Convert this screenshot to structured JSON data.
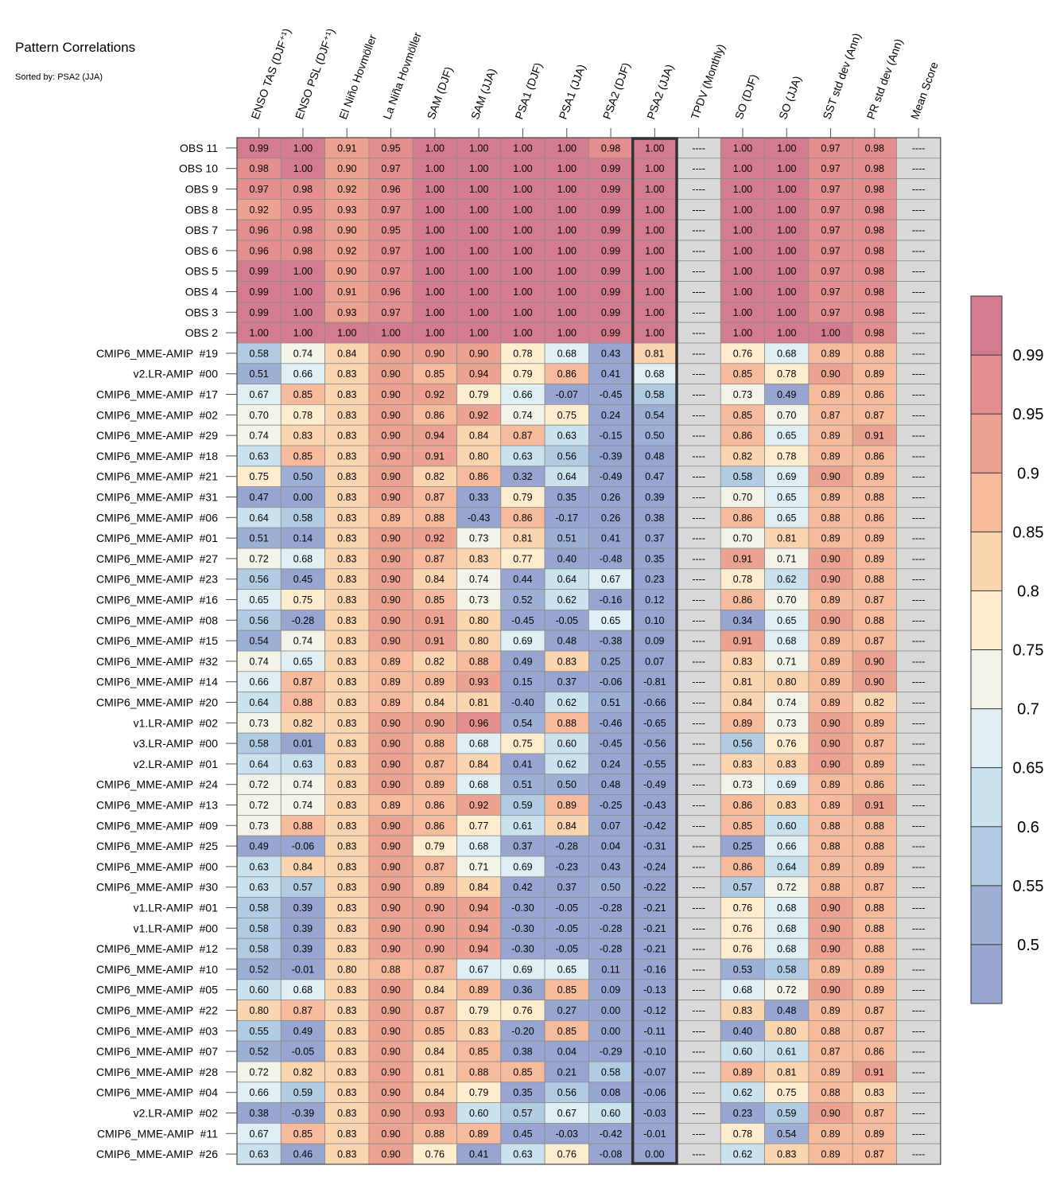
{
  "title": "Pattern Correlations",
  "subtitle": "Sorted by: PSA2 (JJA)",
  "chart_data": {
    "type": "heatmap",
    "columns": [
      "ENSO TAS (DJF⁺¹)",
      "ENSO PSL (DJF⁺¹)",
      "El Niño Hovmöller",
      "La Niña Hovmöller",
      "SAM (DJF)",
      "SAM (JJA)",
      "PSA1 (DJF)",
      "PSA1 (JJA)",
      "PSA2 (DJF)",
      "PSA2 (JJA)",
      "TPDV (Monthly)",
      "SO (DJF)",
      "SO (JJA)",
      "SST std dev (Ann)",
      "PR std dev (Ann)",
      "Mean Score"
    ],
    "highlight_column": "PSA2 (JJA)",
    "missing_label": "----",
    "rows": [
      {
        "name": "OBS 11",
        "values": [
          0.99,
          1.0,
          0.91,
          0.95,
          1.0,
          1.0,
          1.0,
          1.0,
          0.98,
          1.0,
          null,
          1.0,
          1.0,
          0.97,
          0.98,
          null
        ]
      },
      {
        "name": "OBS 10",
        "values": [
          0.98,
          1.0,
          0.9,
          0.97,
          1.0,
          1.0,
          1.0,
          1.0,
          0.99,
          1.0,
          null,
          1.0,
          1.0,
          0.97,
          0.98,
          null
        ]
      },
      {
        "name": "OBS 9",
        "values": [
          0.97,
          0.98,
          0.92,
          0.96,
          1.0,
          1.0,
          1.0,
          1.0,
          0.99,
          1.0,
          null,
          1.0,
          1.0,
          0.97,
          0.98,
          null
        ]
      },
      {
        "name": "OBS 8",
        "values": [
          0.92,
          0.95,
          0.93,
          0.97,
          1.0,
          1.0,
          1.0,
          1.0,
          0.99,
          1.0,
          null,
          1.0,
          1.0,
          0.97,
          0.98,
          null
        ]
      },
      {
        "name": "OBS 7",
        "values": [
          0.96,
          0.98,
          0.9,
          0.95,
          1.0,
          1.0,
          1.0,
          1.0,
          0.99,
          1.0,
          null,
          1.0,
          1.0,
          0.97,
          0.98,
          null
        ]
      },
      {
        "name": "OBS 6",
        "values": [
          0.96,
          0.98,
          0.92,
          0.97,
          1.0,
          1.0,
          1.0,
          1.0,
          0.99,
          1.0,
          null,
          1.0,
          1.0,
          0.97,
          0.98,
          null
        ]
      },
      {
        "name": "OBS 5",
        "values": [
          0.99,
          1.0,
          0.9,
          0.97,
          1.0,
          1.0,
          1.0,
          1.0,
          0.99,
          1.0,
          null,
          1.0,
          1.0,
          0.97,
          0.98,
          null
        ]
      },
      {
        "name": "OBS 4",
        "values": [
          0.99,
          1.0,
          0.91,
          0.96,
          1.0,
          1.0,
          1.0,
          1.0,
          0.99,
          1.0,
          null,
          1.0,
          1.0,
          0.97,
          0.98,
          null
        ]
      },
      {
        "name": "OBS 3",
        "values": [
          0.99,
          1.0,
          0.93,
          0.97,
          1.0,
          1.0,
          1.0,
          1.0,
          0.99,
          1.0,
          null,
          1.0,
          1.0,
          0.97,
          0.98,
          null
        ]
      },
      {
        "name": "OBS 2",
        "values": [
          1.0,
          1.0,
          1.0,
          1.0,
          1.0,
          1.0,
          1.0,
          1.0,
          0.99,
          1.0,
          null,
          1.0,
          1.0,
          1.0,
          0.98,
          null
        ]
      },
      {
        "name": "CMIP6_MME-AMIP  #19",
        "values": [
          0.58,
          0.74,
          0.84,
          0.9,
          0.9,
          0.9,
          0.78,
          0.68,
          0.43,
          0.81,
          null,
          0.76,
          0.68,
          0.89,
          0.88,
          null
        ]
      },
      {
        "name": "v2.LR-AMIP  #00",
        "values": [
          0.51,
          0.66,
          0.83,
          0.9,
          0.85,
          0.94,
          0.79,
          0.86,
          0.41,
          0.68,
          null,
          0.85,
          0.78,
          0.9,
          0.89,
          null
        ]
      },
      {
        "name": "CMIP6_MME-AMIP  #17",
        "values": [
          0.67,
          0.85,
          0.83,
          0.9,
          0.92,
          0.79,
          0.66,
          -0.07,
          -0.45,
          0.58,
          null,
          0.73,
          0.49,
          0.89,
          0.86,
          null
        ]
      },
      {
        "name": "CMIP6_MME-AMIP  #02",
        "values": [
          0.7,
          0.78,
          0.83,
          0.9,
          0.86,
          0.92,
          0.74,
          0.75,
          0.24,
          0.54,
          null,
          0.85,
          0.7,
          0.87,
          0.87,
          null
        ]
      },
      {
        "name": "CMIP6_MME-AMIP  #29",
        "values": [
          0.74,
          0.83,
          0.83,
          0.9,
          0.94,
          0.84,
          0.87,
          0.63,
          -0.15,
          0.5,
          null,
          0.86,
          0.65,
          0.89,
          0.91,
          null
        ]
      },
      {
        "name": "CMIP6_MME-AMIP  #18",
        "values": [
          0.63,
          0.85,
          0.83,
          0.9,
          0.91,
          0.8,
          0.63,
          0.56,
          -0.39,
          0.48,
          null,
          0.82,
          0.78,
          0.89,
          0.86,
          null
        ]
      },
      {
        "name": "CMIP6_MME-AMIP  #21",
        "values": [
          0.75,
          0.5,
          0.83,
          0.9,
          0.82,
          0.86,
          0.32,
          0.64,
          -0.49,
          0.47,
          null,
          0.58,
          0.69,
          0.9,
          0.89,
          null
        ]
      },
      {
        "name": "CMIP6_MME-AMIP  #31",
        "values": [
          0.47,
          0.0,
          0.83,
          0.9,
          0.87,
          0.33,
          0.79,
          0.35,
          0.26,
          0.39,
          null,
          0.7,
          0.65,
          0.89,
          0.88,
          null
        ]
      },
      {
        "name": "CMIP6_MME-AMIP  #06",
        "values": [
          0.64,
          0.58,
          0.83,
          0.89,
          0.88,
          -0.43,
          0.86,
          -0.17,
          0.26,
          0.38,
          null,
          0.86,
          0.65,
          0.88,
          0.86,
          null
        ]
      },
      {
        "name": "CMIP6_MME-AMIP  #01",
        "values": [
          0.51,
          0.14,
          0.83,
          0.9,
          0.92,
          0.73,
          0.81,
          0.51,
          0.41,
          0.37,
          null,
          0.7,
          0.81,
          0.89,
          0.89,
          null
        ]
      },
      {
        "name": "CMIP6_MME-AMIP  #27",
        "values": [
          0.72,
          0.68,
          0.83,
          0.9,
          0.87,
          0.83,
          0.77,
          0.4,
          -0.48,
          0.35,
          null,
          0.91,
          0.71,
          0.9,
          0.89,
          null
        ]
      },
      {
        "name": "CMIP6_MME-AMIP  #23",
        "values": [
          0.56,
          0.45,
          0.83,
          0.9,
          0.84,
          0.74,
          0.44,
          0.64,
          0.67,
          0.23,
          null,
          0.78,
          0.62,
          0.9,
          0.88,
          null
        ]
      },
      {
        "name": "CMIP6_MME-AMIP  #16",
        "values": [
          0.65,
          0.75,
          0.83,
          0.9,
          0.85,
          0.73,
          0.52,
          0.62,
          -0.16,
          0.12,
          null,
          0.86,
          0.7,
          0.89,
          0.87,
          null
        ]
      },
      {
        "name": "CMIP6_MME-AMIP  #08",
        "values": [
          0.56,
          -0.28,
          0.83,
          0.9,
          0.91,
          0.8,
          -0.45,
          -0.05,
          0.65,
          0.1,
          null,
          0.34,
          0.65,
          0.9,
          0.88,
          null
        ]
      },
      {
        "name": "CMIP6_MME-AMIP  #15",
        "values": [
          0.54,
          0.74,
          0.83,
          0.9,
          0.91,
          0.8,
          0.69,
          0.48,
          -0.38,
          0.09,
          null,
          0.91,
          0.68,
          0.89,
          0.87,
          null
        ]
      },
      {
        "name": "CMIP6_MME-AMIP  #32",
        "values": [
          0.74,
          0.65,
          0.83,
          0.89,
          0.82,
          0.88,
          0.49,
          0.83,
          0.25,
          0.07,
          null,
          0.83,
          0.71,
          0.89,
          0.9,
          null
        ]
      },
      {
        "name": "CMIP6_MME-AMIP  #14",
        "values": [
          0.66,
          0.87,
          0.83,
          0.89,
          0.89,
          0.93,
          0.15,
          0.37,
          -0.06,
          -0.81,
          null,
          0.81,
          0.8,
          0.89,
          0.9,
          null
        ]
      },
      {
        "name": "CMIP6_MME-AMIP  #20",
        "values": [
          0.64,
          0.88,
          0.83,
          0.89,
          0.84,
          0.81,
          -0.4,
          0.62,
          0.51,
          -0.66,
          null,
          0.84,
          0.74,
          0.89,
          0.82,
          null
        ]
      },
      {
        "name": "v1.LR-AMIP  #02",
        "values": [
          0.73,
          0.82,
          0.83,
          0.9,
          0.9,
          0.96,
          0.54,
          0.88,
          -0.46,
          -0.65,
          null,
          0.89,
          0.73,
          0.9,
          0.89,
          null
        ]
      },
      {
        "name": "v3.LR-AMIP  #00",
        "values": [
          0.58,
          0.01,
          0.83,
          0.9,
          0.88,
          0.68,
          0.75,
          0.6,
          -0.45,
          -0.56,
          null,
          0.56,
          0.76,
          0.9,
          0.87,
          null
        ]
      },
      {
        "name": "v2.LR-AMIP  #01",
        "values": [
          0.64,
          0.63,
          0.83,
          0.9,
          0.87,
          0.84,
          0.41,
          0.62,
          0.24,
          -0.55,
          null,
          0.83,
          0.83,
          0.9,
          0.89,
          null
        ]
      },
      {
        "name": "CMIP6_MME-AMIP  #24",
        "values": [
          0.72,
          0.74,
          0.83,
          0.9,
          0.89,
          0.68,
          0.51,
          0.5,
          0.48,
          -0.49,
          null,
          0.73,
          0.69,
          0.89,
          0.86,
          null
        ]
      },
      {
        "name": "CMIP6_MME-AMIP  #13",
        "values": [
          0.72,
          0.74,
          0.83,
          0.89,
          0.86,
          0.92,
          0.59,
          0.89,
          -0.25,
          -0.43,
          null,
          0.86,
          0.83,
          0.89,
          0.91,
          null
        ]
      },
      {
        "name": "CMIP6_MME-AMIP  #09",
        "values": [
          0.73,
          0.88,
          0.83,
          0.9,
          0.86,
          0.77,
          0.61,
          0.84,
          0.07,
          -0.42,
          null,
          0.85,
          0.6,
          0.88,
          0.88,
          null
        ]
      },
      {
        "name": "CMIP6_MME-AMIP  #25",
        "values": [
          0.49,
          -0.06,
          0.83,
          0.9,
          0.79,
          0.68,
          0.37,
          -0.28,
          0.04,
          -0.31,
          null,
          0.25,
          0.66,
          0.88,
          0.88,
          null
        ]
      },
      {
        "name": "CMIP6_MME-AMIP  #00",
        "values": [
          0.63,
          0.84,
          0.83,
          0.9,
          0.87,
          0.71,
          0.69,
          -0.23,
          0.43,
          -0.24,
          null,
          0.86,
          0.64,
          0.89,
          0.89,
          null
        ]
      },
      {
        "name": "CMIP6_MME-AMIP  #30",
        "values": [
          0.63,
          0.57,
          0.83,
          0.9,
          0.89,
          0.84,
          0.42,
          0.37,
          0.5,
          -0.22,
          null,
          0.57,
          0.72,
          0.88,
          0.87,
          null
        ]
      },
      {
        "name": "v1.LR-AMIP  #01",
        "values": [
          0.58,
          0.39,
          0.83,
          0.9,
          0.9,
          0.94,
          -0.3,
          -0.05,
          -0.28,
          -0.21,
          null,
          0.76,
          0.68,
          0.9,
          0.88,
          null
        ]
      },
      {
        "name": "v1.LR-AMIP  #00",
        "values": [
          0.58,
          0.39,
          0.83,
          0.9,
          0.9,
          0.94,
          -0.3,
          -0.05,
          -0.28,
          -0.21,
          null,
          0.76,
          0.68,
          0.9,
          0.88,
          null
        ]
      },
      {
        "name": "CMIP6_MME-AMIP  #12",
        "values": [
          0.58,
          0.39,
          0.83,
          0.9,
          0.9,
          0.94,
          -0.3,
          -0.05,
          -0.28,
          -0.21,
          null,
          0.76,
          0.68,
          0.9,
          0.88,
          null
        ]
      },
      {
        "name": "CMIP6_MME-AMIP  #10",
        "values": [
          0.52,
          -0.01,
          0.8,
          0.88,
          0.87,
          0.67,
          0.69,
          0.65,
          0.11,
          -0.16,
          null,
          0.53,
          0.58,
          0.89,
          0.89,
          null
        ]
      },
      {
        "name": "CMIP6_MME-AMIP  #05",
        "values": [
          0.6,
          0.68,
          0.83,
          0.9,
          0.84,
          0.89,
          0.36,
          0.85,
          0.09,
          -0.13,
          null,
          0.68,
          0.72,
          0.9,
          0.89,
          null
        ]
      },
      {
        "name": "CMIP6_MME-AMIP  #22",
        "values": [
          0.8,
          0.87,
          0.83,
          0.9,
          0.87,
          0.79,
          0.76,
          0.27,
          -0.0,
          -0.12,
          null,
          0.83,
          0.48,
          0.89,
          0.87,
          null
        ]
      },
      {
        "name": "CMIP6_MME-AMIP  #03",
        "values": [
          0.55,
          0.49,
          0.83,
          0.9,
          0.85,
          0.83,
          -0.2,
          0.85,
          -0.0,
          -0.11,
          null,
          0.4,
          0.8,
          0.88,
          0.87,
          null
        ]
      },
      {
        "name": "CMIP6_MME-AMIP  #07",
        "values": [
          0.52,
          -0.05,
          0.83,
          0.9,
          0.84,
          0.85,
          0.38,
          0.04,
          -0.29,
          -0.1,
          null,
          0.6,
          0.61,
          0.87,
          0.86,
          null
        ]
      },
      {
        "name": "CMIP6_MME-AMIP  #28",
        "values": [
          0.72,
          0.82,
          0.83,
          0.9,
          0.81,
          0.88,
          0.85,
          0.21,
          0.58,
          -0.07,
          null,
          0.89,
          0.81,
          0.89,
          0.91,
          null
        ]
      },
      {
        "name": "CMIP6_MME-AMIP  #04",
        "values": [
          0.66,
          0.59,
          0.83,
          0.9,
          0.84,
          0.79,
          0.35,
          0.56,
          0.08,
          -0.06,
          null,
          0.62,
          0.75,
          0.88,
          0.83,
          null
        ]
      },
      {
        "name": "v2.LR-AMIP  #02",
        "values": [
          0.38,
          -0.39,
          0.83,
          0.9,
          0.93,
          0.6,
          0.57,
          0.67,
          0.6,
          -0.03,
          null,
          0.23,
          0.59,
          0.9,
          0.87,
          null
        ]
      },
      {
        "name": "CMIP6_MME-AMIP  #11",
        "values": [
          0.67,
          0.85,
          0.83,
          0.9,
          0.88,
          0.89,
          0.45,
          -0.03,
          -0.42,
          -0.01,
          null,
          0.78,
          0.54,
          0.89,
          0.89,
          null
        ]
      },
      {
        "name": "CMIP6_MME-AMIP  #26",
        "values": [
          0.63,
          0.46,
          0.83,
          0.9,
          0.76,
          0.41,
          0.63,
          0.76,
          -0.08,
          -0.0,
          null,
          0.62,
          0.83,
          0.89,
          0.87,
          null
        ]
      }
    ],
    "colorbar": {
      "tick_labels": [
        "0.99",
        "0.95",
        "0.9",
        "0.85",
        "0.8",
        "0.75",
        "0.7",
        "0.65",
        "0.6",
        "0.55",
        "0.5"
      ],
      "bounds": [
        0.99,
        0.95,
        0.9,
        0.85,
        0.8,
        0.75,
        0.7,
        0.65,
        0.6,
        0.55,
        0.5
      ],
      "colors": [
        "#d37b8f",
        "#e38f8f",
        "#eda391",
        "#f6bb9c",
        "#fbd5b0",
        "#fdecce",
        "#f3f3ea",
        "#e0eff4",
        "#c9e2ee",
        "#b0cbe2",
        "#9dafd5",
        "#97a5d0"
      ]
    },
    "missing_color": "#d9d9d9"
  }
}
